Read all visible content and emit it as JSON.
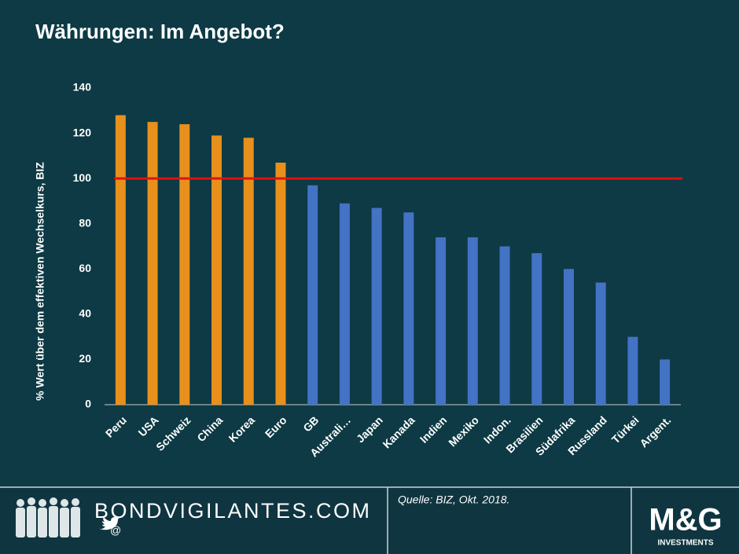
{
  "chart_data": {
    "type": "bar",
    "title": "Währungen: Im Angebot?",
    "y_label": "% Wert über dem effektiven Wechselkurs, BIZ",
    "categories": [
      "Peru",
      "USA",
      "Schweiz",
      "China",
      "Korea",
      "Euro",
      "GB",
      "Australi…",
      "Japan",
      "Kanada",
      "Indien",
      "Mexiko",
      "Indon.",
      "Brasilien",
      "Südafrika",
      "Russland",
      "Türkei",
      "Argent."
    ],
    "values": [
      128,
      125,
      124,
      119,
      118,
      107,
      97,
      89,
      87,
      85,
      74,
      74,
      70,
      67,
      60,
      54,
      30,
      20
    ],
    "colors": [
      "#e8901c",
      "#e8901c",
      "#e8901c",
      "#e8901c",
      "#e8901c",
      "#e8901c",
      "#4472c4",
      "#4472c4",
      "#4472c4",
      "#4472c4",
      "#4472c4",
      "#4472c4",
      "#4472c4",
      "#4472c4",
      "#4472c4",
      "#4472c4",
      "#4472c4",
      "#4472c4"
    ],
    "reference_line": {
      "value": 100,
      "color": "#e01010"
    },
    "ylim": [
      0,
      140
    ],
    "yticks": [
      0,
      20,
      40,
      60,
      80,
      100,
      120,
      140
    ],
    "grid": false
  },
  "footer": {
    "brand": "BONDVIGILANTES.COM",
    "social": "@",
    "source": "Quelle: BIZ, Okt. 2018.",
    "logo": "M&G",
    "logo_sub": "INVESTMENTS"
  }
}
